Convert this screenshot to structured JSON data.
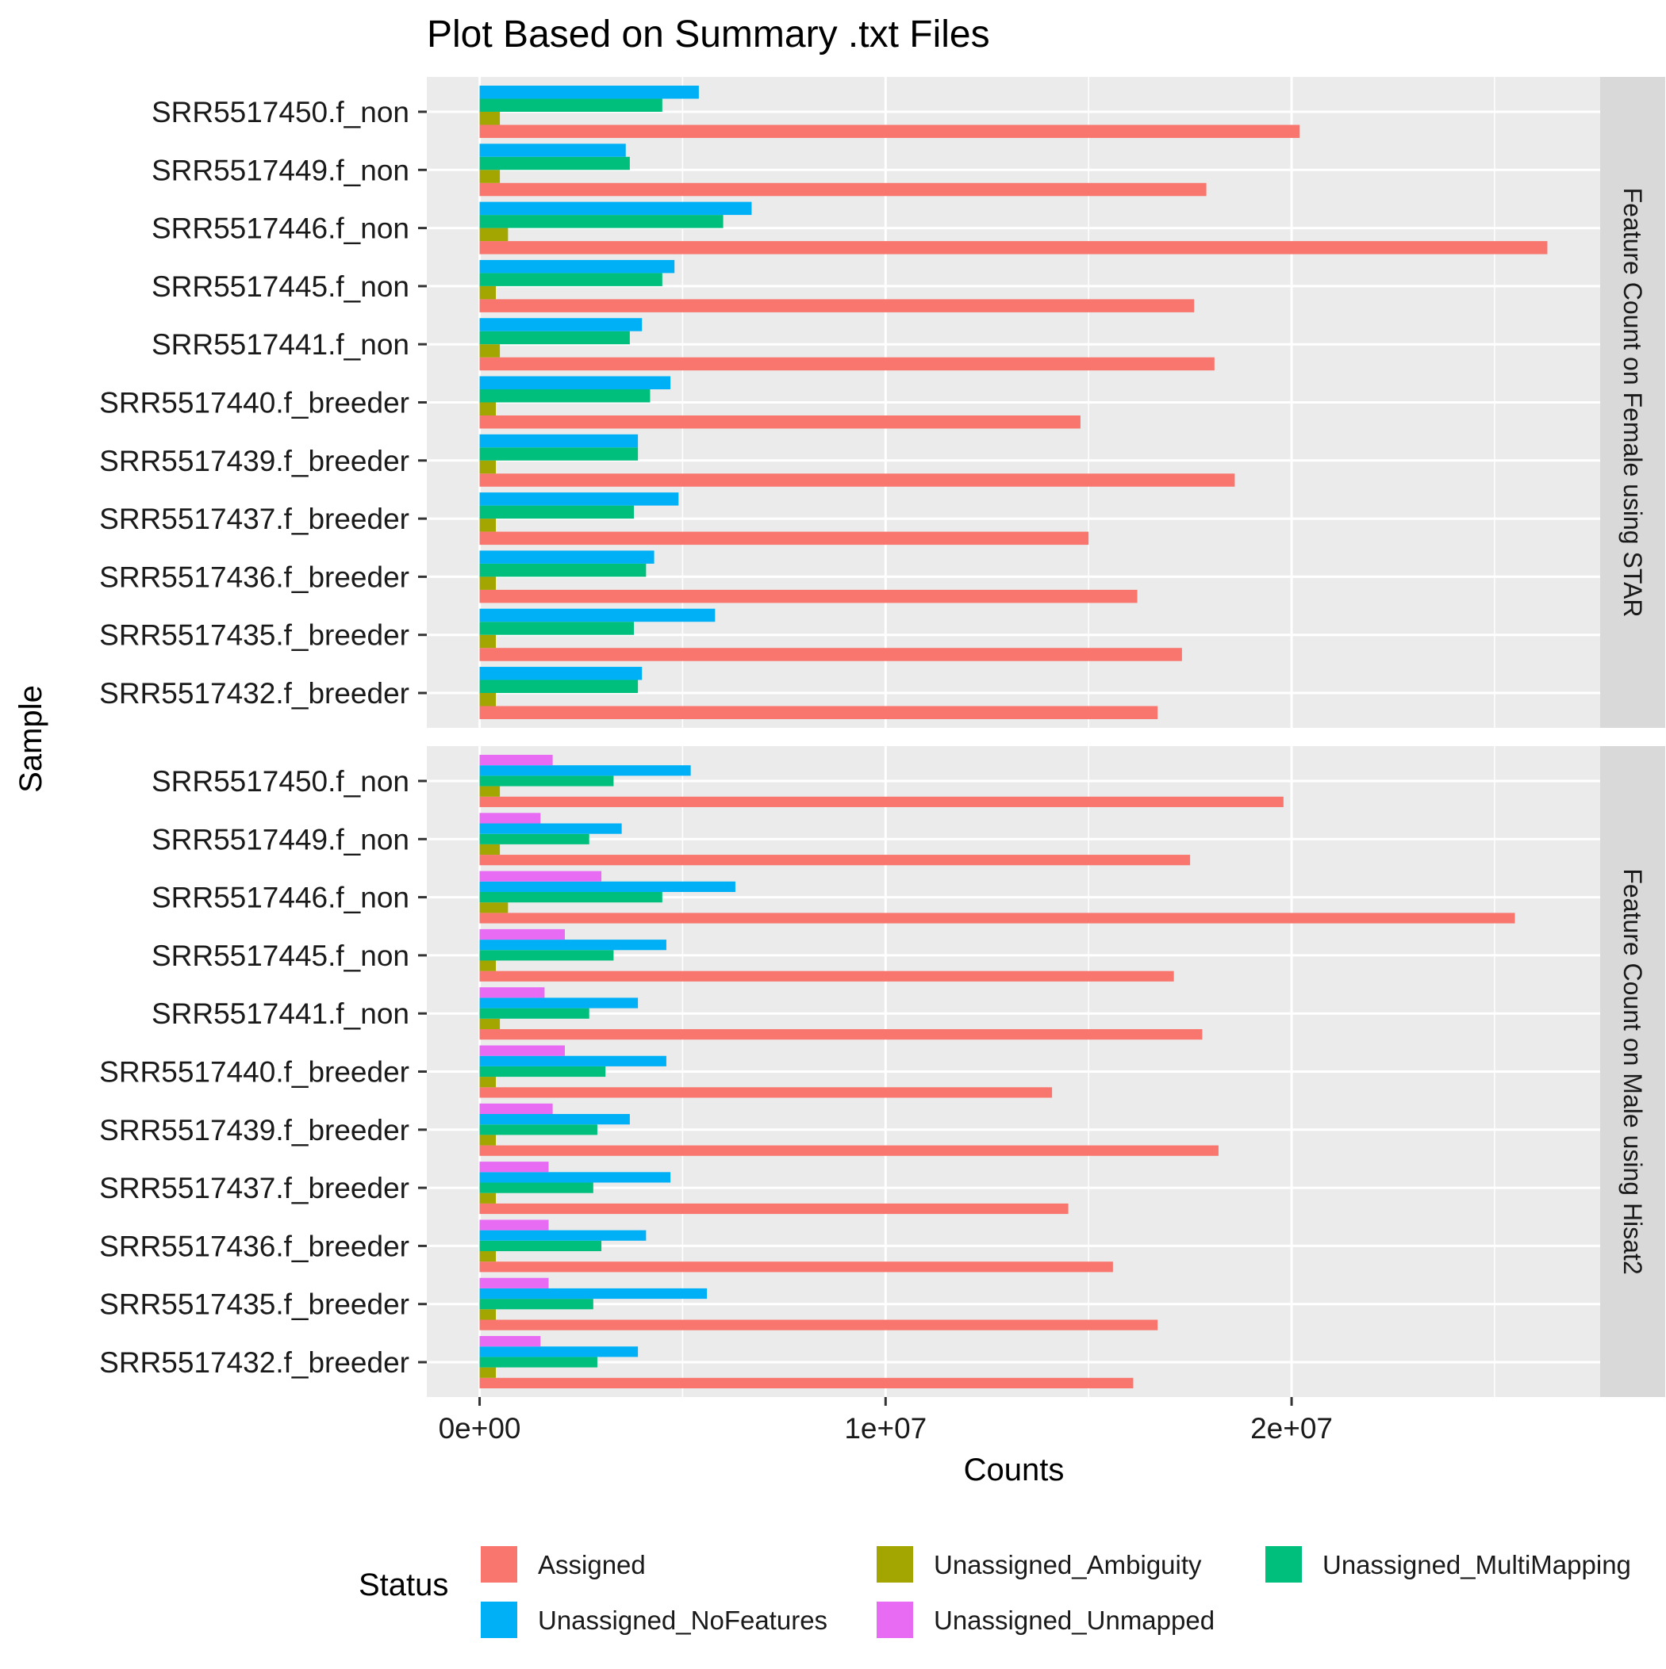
{
  "chart_data": {
    "type": "bar",
    "title": "Plot Based on Summary .txt Files",
    "xlabel": "Counts",
    "ylabel": "Sample",
    "xlim": [
      -1300000,
      27600000
    ],
    "xticks": [
      0,
      10000000,
      20000000
    ],
    "xtick_labels": [
      "0e+00",
      "1e+07",
      "2e+07"
    ],
    "grid": true,
    "legend": {
      "title": "Status",
      "position": "bottom",
      "entries": [
        "Assigned",
        "Unassigned_Ambiguity",
        "Unassigned_MultiMapping",
        "Unassigned_NoFeatures",
        "Unassigned_Unmapped"
      ]
    },
    "colors": {
      "Assigned": "#F8766D",
      "Unassigned_Ambiguity": "#A3A500",
      "Unassigned_MultiMapping": "#00BF7D",
      "Unassigned_NoFeatures": "#00B0F6",
      "Unassigned_Unmapped": "#E76BF3",
      "panel_bg": "#EBEBEB",
      "strip_bg": "#D9D9D9",
      "grid": "#FFFFFF"
    },
    "categories": [
      "SRR5517450.f_non",
      "SRR5517449.f_non",
      "SRR5517446.f_non",
      "SRR5517445.f_non",
      "SRR5517441.f_non",
      "SRR5517440.f_breeder",
      "SRR5517439.f_breeder",
      "SRR5517437.f_breeder",
      "SRR5517436.f_breeder",
      "SRR5517435.f_breeder",
      "SRR5517432.f_breeder"
    ],
    "panels": [
      {
        "strip": "Feature Count on Female using STAR",
        "series": [
          {
            "name": "Assigned",
            "values": [
              20200000,
              17900000,
              26300000,
              17600000,
              18100000,
              14800000,
              18600000,
              15000000,
              16200000,
              17300000,
              16700000
            ]
          },
          {
            "name": "Unassigned_Ambiguity",
            "values": [
              500000,
              500000,
              700000,
              400000,
              500000,
              400000,
              400000,
              400000,
              400000,
              400000,
              400000
            ]
          },
          {
            "name": "Unassigned_MultiMapping",
            "values": [
              4500000,
              3700000,
              6000000,
              4500000,
              3700000,
              4200000,
              3900000,
              3800000,
              4100000,
              3800000,
              3900000
            ]
          },
          {
            "name": "Unassigned_NoFeatures",
            "values": [
              5400000,
              3600000,
              6700000,
              4800000,
              4000000,
              4700000,
              3900000,
              4900000,
              4300000,
              5800000,
              4000000
            ]
          }
        ]
      },
      {
        "strip": "Feature Count on Male using Hisat2",
        "series": [
          {
            "name": "Assigned",
            "values": [
              19800000,
              17500000,
              25500000,
              17100000,
              17800000,
              14100000,
              18200000,
              14500000,
              15600000,
              16700000,
              16100000
            ]
          },
          {
            "name": "Unassigned_Ambiguity",
            "values": [
              500000,
              500000,
              700000,
              400000,
              500000,
              400000,
              400000,
              400000,
              400000,
              400000,
              400000
            ]
          },
          {
            "name": "Unassigned_MultiMapping",
            "values": [
              3300000,
              2700000,
              4500000,
              3300000,
              2700000,
              3100000,
              2900000,
              2800000,
              3000000,
              2800000,
              2900000
            ]
          },
          {
            "name": "Unassigned_NoFeatures",
            "values": [
              5200000,
              3500000,
              6300000,
              4600000,
              3900000,
              4600000,
              3700000,
              4700000,
              4100000,
              5600000,
              3900000
            ]
          },
          {
            "name": "Unassigned_Unmapped",
            "values": [
              1800000,
              1500000,
              3000000,
              2100000,
              1600000,
              2100000,
              1800000,
              1700000,
              1700000,
              1700000,
              1500000
            ]
          }
        ]
      }
    ]
  }
}
